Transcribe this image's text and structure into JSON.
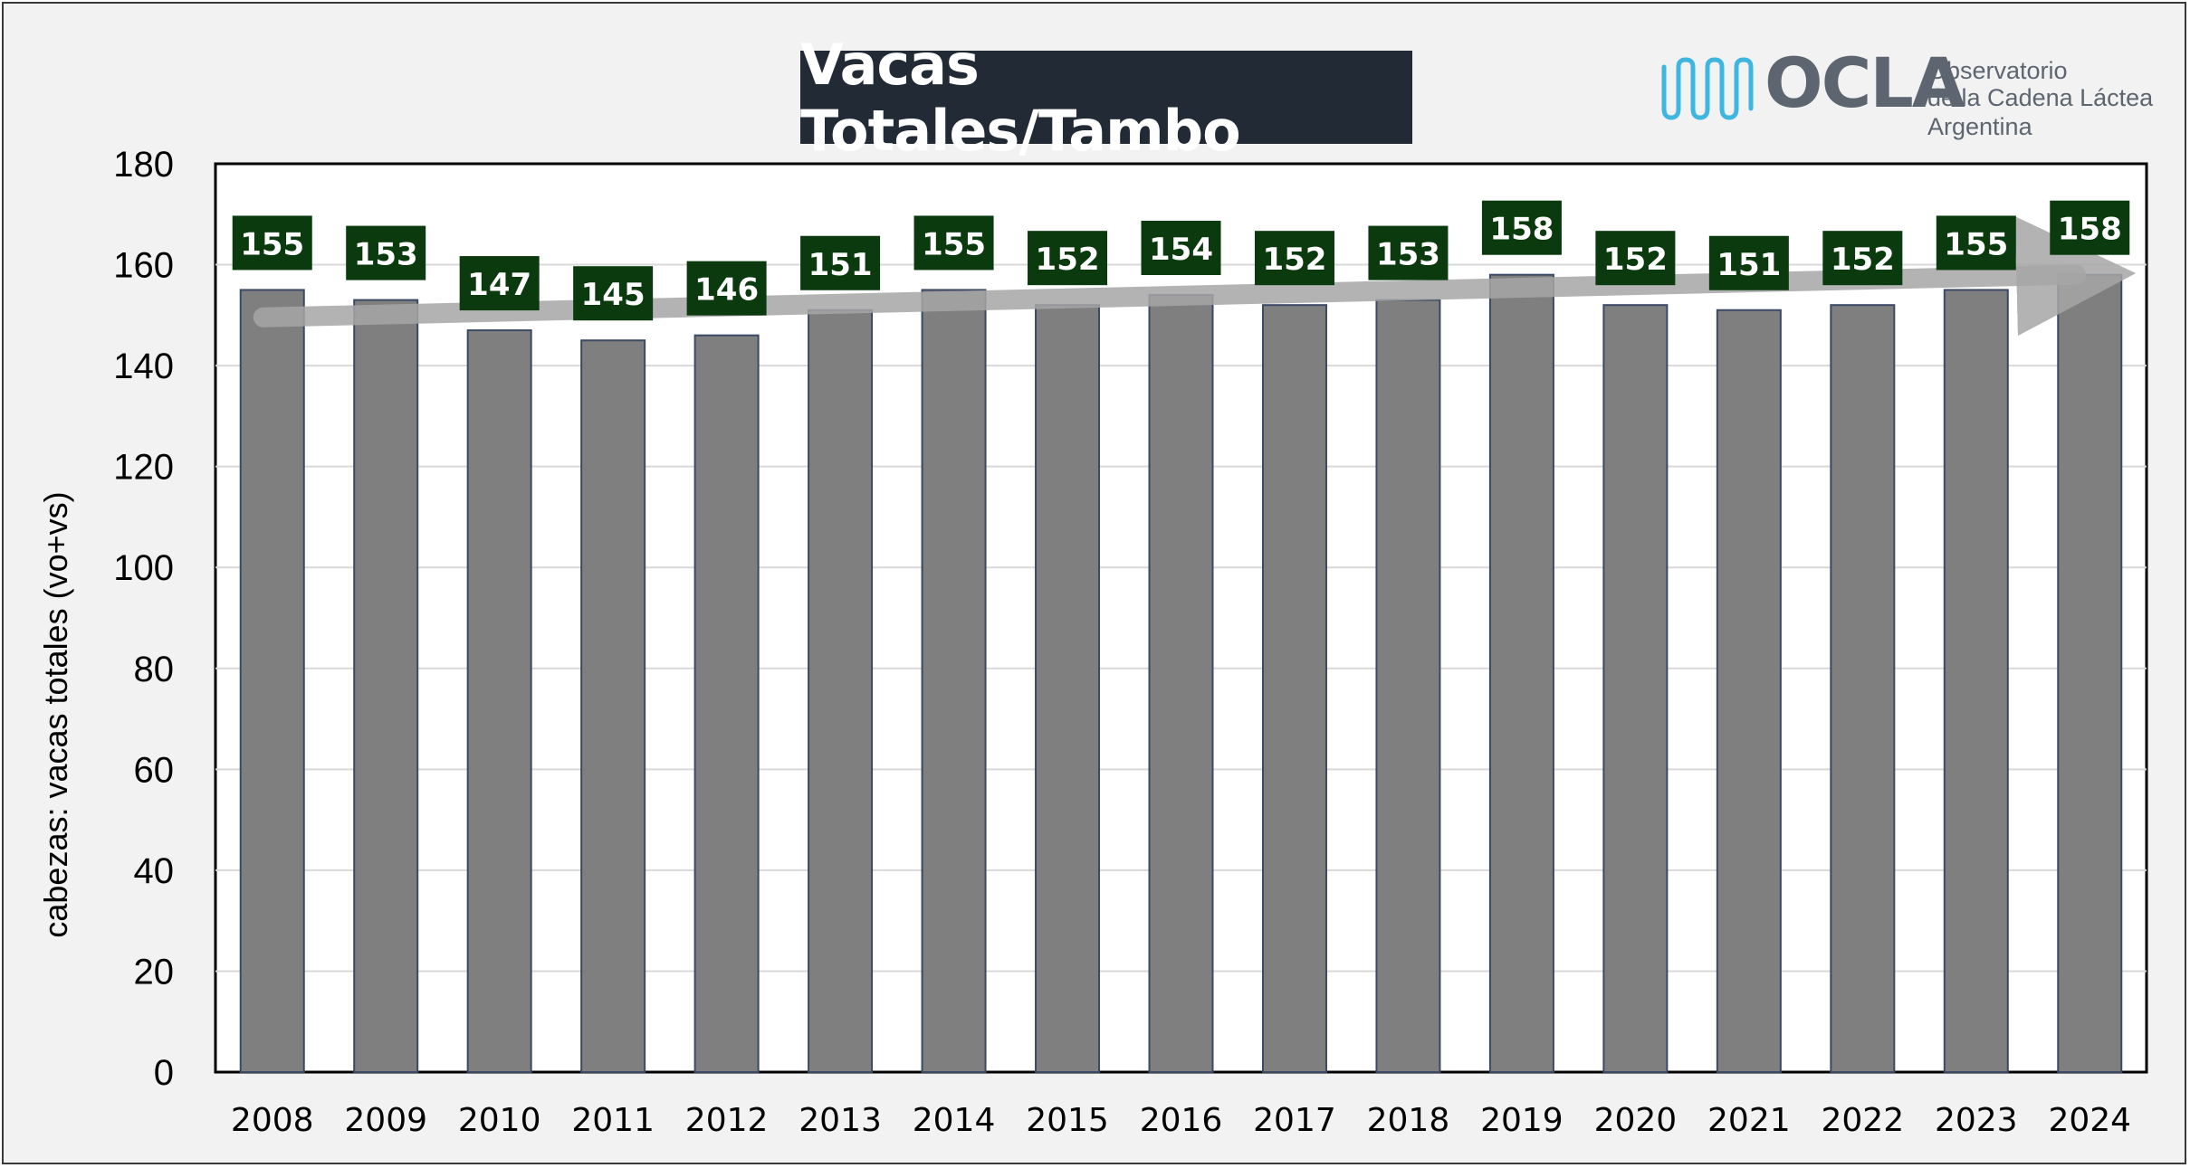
{
  "colors": {
    "bar": "#7f7f7f",
    "bar_edge": "#3b4a64",
    "label_bg": "#0a3a0e",
    "label_text": "#ffffff",
    "title_bg": "#222a35",
    "trend_arrow": "#a6a6a6",
    "logo_accent": "#3fb6e0"
  },
  "logo": {
    "word": "OCLA",
    "line1": "Observatorio",
    "line2": "de la Cadena Láctea",
    "line3": "Argentina",
    "icon": "wave-bars-icon"
  },
  "chart_data": {
    "type": "bar",
    "title": "Vacas Totales/Tambo",
    "xlabel": "",
    "ylabel": "cabezas: vacas totales (vo+vs)",
    "categories": [
      "2008",
      "2009",
      "2010",
      "2011",
      "2012",
      "2013",
      "2014",
      "2015",
      "2016",
      "2017",
      "2018",
      "2019",
      "2020",
      "2021",
      "2022",
      "2023",
      "2024"
    ],
    "values": [
      155,
      153,
      147,
      145,
      146,
      151,
      155,
      152,
      154,
      152,
      153,
      158,
      152,
      151,
      152,
      155,
      158
    ],
    "ylim": [
      0,
      180
    ],
    "yticks": [
      "0",
      "20",
      "40",
      "60",
      "80",
      "100",
      "120",
      "140",
      "160",
      "180"
    ],
    "grid": true,
    "data_labels": true,
    "trend_arrow": true
  }
}
